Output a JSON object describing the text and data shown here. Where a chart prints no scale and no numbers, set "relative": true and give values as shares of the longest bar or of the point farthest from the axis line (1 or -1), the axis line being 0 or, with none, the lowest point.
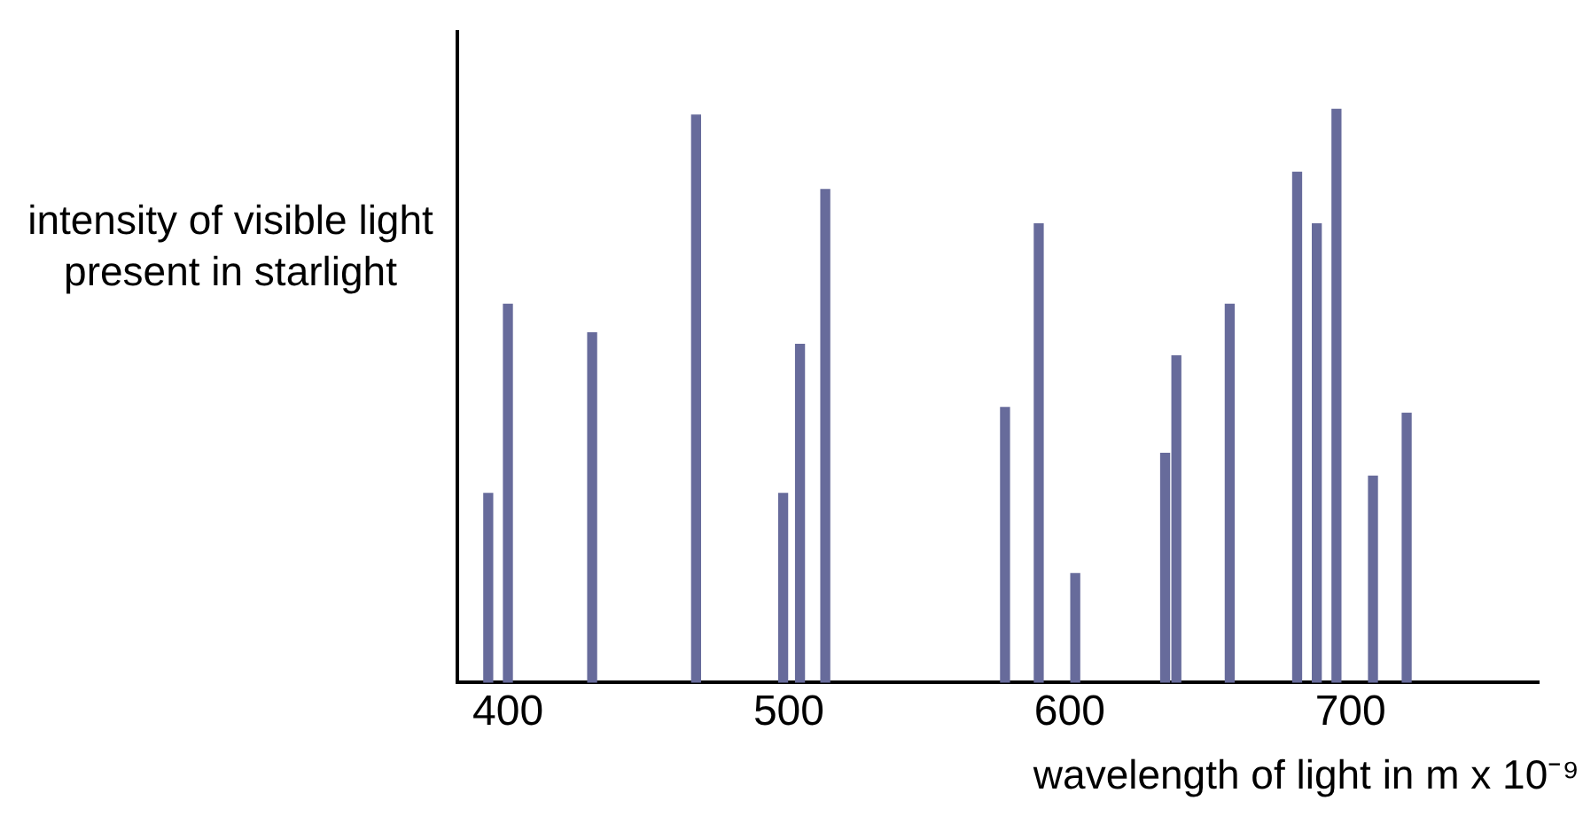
{
  "chart_data": {
    "type": "bar",
    "relative": true,
    "xlabel": "wavelength of light in m x 10⁻⁹",
    "ylabel": "intensity of visible light present in starlight",
    "x": [
      393,
      400,
      430,
      467,
      498,
      504,
      513,
      577,
      589,
      602,
      634,
      638,
      657,
      681,
      688,
      695,
      708,
      720
    ],
    "values": [
      0.33,
      0.66,
      0.61,
      0.99,
      0.33,
      0.59,
      0.86,
      0.48,
      0.8,
      0.19,
      0.4,
      0.57,
      0.66,
      0.89,
      0.8,
      1,
      0.36,
      0.47
    ],
    "color": "#676b9b",
    "xlim": [
      382,
      767
    ],
    "xticks": [
      400,
      500,
      600,
      700
    ],
    "grid": false,
    "legend": false
  }
}
